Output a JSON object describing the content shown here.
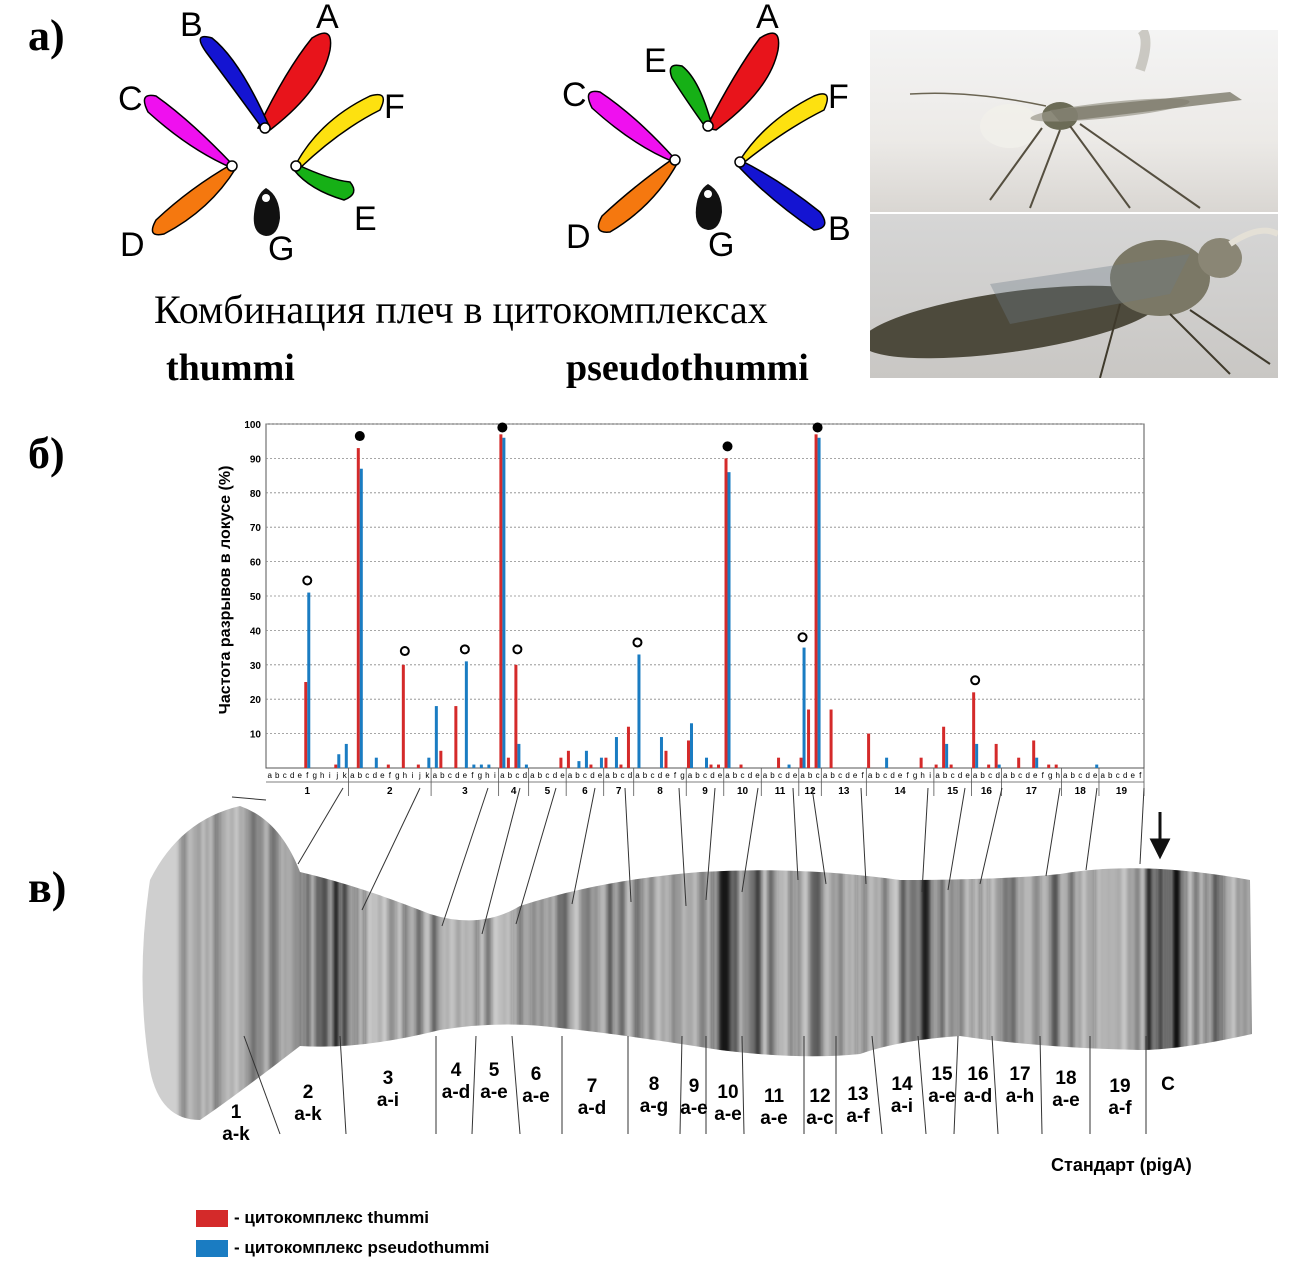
{
  "panel_a": {
    "letter": "а)",
    "caption": "Комбинация плеч в цитокомплексах",
    "thummi_name": "thummi",
    "pseudothummi_name": "pseudothummi",
    "thummi_arms": [
      "A",
      "B",
      "C",
      "D",
      "E",
      "F",
      "G"
    ],
    "pseudothummi_arms": [
      "A",
      "E",
      "C",
      "D",
      "B",
      "F",
      "G"
    ],
    "colors": {
      "A": "#e8141b",
      "B": "#1414d2",
      "C": "#ef10ef",
      "D": "#f5780f",
      "E": "#16b016",
      "F": "#fde110",
      "G": "#111111"
    }
  },
  "panel_b": {
    "letter": "б)"
  },
  "panel_c": {
    "letter": "в)",
    "band_labels": [
      {
        "num": "1",
        "sub": "a-k"
      },
      {
        "num": "2",
        "sub": "a-k"
      },
      {
        "num": "3",
        "sub": "a-i"
      },
      {
        "num": "4",
        "sub": "a-d"
      },
      {
        "num": "5",
        "sub": "a-e"
      },
      {
        "num": "6",
        "sub": "a-e"
      },
      {
        "num": "7",
        "sub": "a-d"
      },
      {
        "num": "8",
        "sub": "a-g"
      },
      {
        "num": "9",
        "sub": "a-e"
      },
      {
        "num": "10",
        "sub": "a-e"
      },
      {
        "num": "11",
        "sub": "a-e"
      },
      {
        "num": "12",
        "sub": "a-c"
      },
      {
        "num": "13",
        "sub": "a-f"
      },
      {
        "num": "14",
        "sub": "a-i"
      },
      {
        "num": "15",
        "sub": "a-e"
      },
      {
        "num": "16",
        "sub": "a-d"
      },
      {
        "num": "17",
        "sub": "a-h"
      },
      {
        "num": "18",
        "sub": "a-e"
      },
      {
        "num": "19",
        "sub": "a-f"
      },
      {
        "num": "C",
        "sub": ""
      }
    ],
    "standard_label": "Стандарт (pigA)"
  },
  "legend": [
    {
      "label": "- цитокомплекс thummi",
      "color": "#d42a2a"
    },
    {
      "label": "- цитокомплекс pseudothummi",
      "color": "#1a7cc2"
    }
  ],
  "chart_data": {
    "type": "bar",
    "ylabel": "Частота разрывов в локусе (%)",
    "xlabel": "",
    "ylim": [
      0,
      100
    ],
    "y_ticks": [
      10,
      20,
      30,
      40,
      50,
      60,
      70,
      80,
      90,
      100
    ],
    "grid": true,
    "segments": [
      {
        "num": "1",
        "letters": [
          "a",
          "b",
          "c",
          "d",
          "e",
          "f",
          "g",
          "h",
          "i",
          "j",
          "k"
        ]
      },
      {
        "num": "2",
        "letters": [
          "a",
          "b",
          "c",
          "d",
          "e",
          "f",
          "g",
          "h",
          "i",
          "j",
          "k"
        ]
      },
      {
        "num": "3",
        "letters": [
          "a",
          "b",
          "c",
          "d",
          "e",
          "f",
          "g",
          "h",
          "i"
        ]
      },
      {
        "num": "4",
        "letters": [
          "a",
          "b",
          "c",
          "d"
        ]
      },
      {
        "num": "5",
        "letters": [
          "a",
          "b",
          "c",
          "d",
          "e"
        ]
      },
      {
        "num": "6",
        "letters": [
          "a",
          "b",
          "c",
          "d",
          "e"
        ]
      },
      {
        "num": "7",
        "letters": [
          "a",
          "b",
          "c",
          "d"
        ]
      },
      {
        "num": "8",
        "letters": [
          "a",
          "b",
          "c",
          "d",
          "e",
          "f",
          "g"
        ]
      },
      {
        "num": "9",
        "letters": [
          "a",
          "b",
          "c",
          "d",
          "e"
        ]
      },
      {
        "num": "10",
        "letters": [
          "a",
          "b",
          "c",
          "d",
          "e"
        ]
      },
      {
        "num": "11",
        "letters": [
          "a",
          "b",
          "c",
          "d",
          "e"
        ]
      },
      {
        "num": "12",
        "letters": [
          "a",
          "b",
          "c"
        ]
      },
      {
        "num": "13",
        "letters": [
          "a",
          "b",
          "c",
          "d",
          "e",
          "f"
        ]
      },
      {
        "num": "14",
        "letters": [
          "a",
          "b",
          "c",
          "d",
          "e",
          "f",
          "g",
          "h",
          "i"
        ]
      },
      {
        "num": "15",
        "letters": [
          "a",
          "b",
          "c",
          "d",
          "e"
        ]
      },
      {
        "num": "16",
        "letters": [
          "a",
          "b",
          "c",
          "d"
        ]
      },
      {
        "num": "17",
        "letters": [
          "a",
          "b",
          "c",
          "d",
          "e",
          "f",
          "g",
          "h"
        ]
      },
      {
        "num": "18",
        "letters": [
          "a",
          "b",
          "c",
          "d",
          "e"
        ]
      },
      {
        "num": "19",
        "letters": [
          "a",
          "b",
          "c",
          "d",
          "e",
          "f"
        ]
      }
    ],
    "series": [
      {
        "name": "цитокомплекс thummi",
        "color": "#d42a2a",
        "points": [
          {
            "pos": "1f",
            "v": 25
          },
          {
            "pos": "1j",
            "v": 1
          },
          {
            "pos": "2b",
            "v": 93
          },
          {
            "pos": "2f",
            "v": 1
          },
          {
            "pos": "2h",
            "v": 30
          },
          {
            "pos": "2j",
            "v": 1
          },
          {
            "pos": "3b",
            "v": 5
          },
          {
            "pos": "3d",
            "v": 18
          },
          {
            "pos": "4a",
            "v": 97
          },
          {
            "pos": "4b",
            "v": 3
          },
          {
            "pos": "4c",
            "v": 30
          },
          {
            "pos": "5e",
            "v": 3
          },
          {
            "pos": "6a",
            "v": 5
          },
          {
            "pos": "6d",
            "v": 1
          },
          {
            "pos": "7a",
            "v": 3
          },
          {
            "pos": "7c",
            "v": 1
          },
          {
            "pos": "7d",
            "v": 12
          },
          {
            "pos": "8e",
            "v": 5
          },
          {
            "pos": "9a",
            "v": 8
          },
          {
            "pos": "9d",
            "v": 1
          },
          {
            "pos": "9e",
            "v": 1
          },
          {
            "pos": "10a",
            "v": 90
          },
          {
            "pos": "10c",
            "v": 1
          },
          {
            "pos": "11c",
            "v": 3
          },
          {
            "pos": "12a",
            "v": 3
          },
          {
            "pos": "12b",
            "v": 17
          },
          {
            "pos": "12c",
            "v": 97
          },
          {
            "pos": "13b",
            "v": 17
          },
          {
            "pos": "14a",
            "v": 10
          },
          {
            "pos": "14h",
            "v": 3
          },
          {
            "pos": "15a",
            "v": 1
          },
          {
            "pos": "15b",
            "v": 12
          },
          {
            "pos": "15c",
            "v": 1
          },
          {
            "pos": "16a",
            "v": 22
          },
          {
            "pos": "16c",
            "v": 1
          },
          {
            "pos": "16d",
            "v": 7
          },
          {
            "pos": "17c",
            "v": 3
          },
          {
            "pos": "17e",
            "v": 8
          },
          {
            "pos": "17g",
            "v": 1
          },
          {
            "pos": "17h",
            "v": 1
          }
        ]
      },
      {
        "name": "цитокомплекс pseudothummi",
        "color": "#1a7cc2",
        "points": [
          {
            "pos": "1f",
            "v": 51
          },
          {
            "pos": "1j",
            "v": 4
          },
          {
            "pos": "1k",
            "v": 7
          },
          {
            "pos": "2k",
            "v": 3
          },
          {
            "pos": "2b",
            "v": 87
          },
          {
            "pos": "2d",
            "v": 3
          },
          {
            "pos": "3a",
            "v": 18
          },
          {
            "pos": "3e",
            "v": 31
          },
          {
            "pos": "3f",
            "v": 1
          },
          {
            "pos": "3g",
            "v": 1
          },
          {
            "pos": "3h",
            "v": 1
          },
          {
            "pos": "4a",
            "v": 96
          },
          {
            "pos": "4c",
            "v": 7
          },
          {
            "pos": "4d",
            "v": 1
          },
          {
            "pos": "6b",
            "v": 2
          },
          {
            "pos": "6c",
            "v": 5
          },
          {
            "pos": "6e",
            "v": 3
          },
          {
            "pos": "7b",
            "v": 9
          },
          {
            "pos": "8a",
            "v": 33
          },
          {
            "pos": "8d",
            "v": 9
          },
          {
            "pos": "9a",
            "v": 13
          },
          {
            "pos": "9c",
            "v": 3
          },
          {
            "pos": "10a",
            "v": 86
          },
          {
            "pos": "11d",
            "v": 1
          },
          {
            "pos": "12a",
            "v": 35
          },
          {
            "pos": "12c",
            "v": 96
          },
          {
            "pos": "14c",
            "v": 3
          },
          {
            "pos": "15b",
            "v": 7
          },
          {
            "pos": "16a",
            "v": 7
          },
          {
            "pos": "16d",
            "v": 1
          },
          {
            "pos": "17e",
            "v": 3
          },
          {
            "pos": "18e",
            "v": 1
          }
        ]
      }
    ],
    "markers": [
      {
        "pos": "1f",
        "type": "open",
        "v": 54.5
      },
      {
        "pos": "2b",
        "type": "filled",
        "v": 96.5
      },
      {
        "pos": "2h",
        "type": "open",
        "v": 34
      },
      {
        "pos": "3e",
        "type": "open",
        "v": 34.5
      },
      {
        "pos": "4a",
        "type": "filled",
        "v": 99
      },
      {
        "pos": "4c",
        "type": "open",
        "v": 34.5
      },
      {
        "pos": "8a",
        "type": "open",
        "v": 36.5
      },
      {
        "pos": "10a",
        "type": "filled",
        "v": 93.5
      },
      {
        "pos": "12a",
        "type": "open",
        "v": 38
      },
      {
        "pos": "12c",
        "type": "filled",
        "v": 99
      },
      {
        "pos": "16a",
        "type": "open",
        "v": 25.5
      }
    ]
  }
}
